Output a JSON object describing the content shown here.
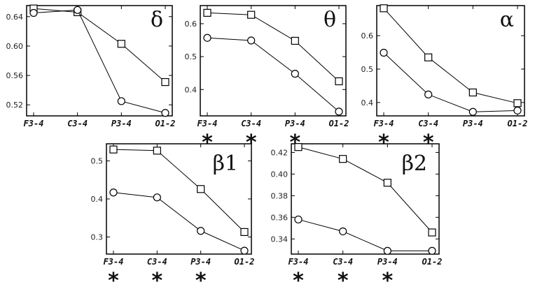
{
  "chart_data": [
    {
      "type": "line",
      "title": "δ",
      "categories": [
        "F3-4",
        "C3-4",
        "P3-4",
        "O1-2"
      ],
      "ylim": [
        0.505,
        0.655
      ],
      "yticks": [
        "0.52",
        "0.56",
        "0.60",
        "0.64"
      ],
      "ytick_values": [
        0.52,
        0.56,
        0.6,
        0.64
      ],
      "significant": [
        false,
        false,
        false,
        false
      ],
      "series": [
        {
          "marker": "square",
          "values": [
            0.651,
            0.646,
            0.603,
            0.551
          ]
        },
        {
          "marker": "circle",
          "values": [
            0.645,
            0.649,
            0.525,
            0.509
          ]
        }
      ]
    },
    {
      "type": "line",
      "title": "θ",
      "categories": [
        "F3-4",
        "C3-4",
        "P3-4",
        "O1-2"
      ],
      "ylim": [
        0.32,
        0.655
      ],
      "yticks": [
        "0.4",
        "0.5",
        "0.6"
      ],
      "ytick_values": [
        0.4,
        0.5,
        0.6
      ],
      "significant": [
        true,
        true,
        true,
        false
      ],
      "series": [
        {
          "marker": "square",
          "values": [
            0.633,
            0.627,
            0.548,
            0.425
          ]
        },
        {
          "marker": "circle",
          "values": [
            0.557,
            0.549,
            0.448,
            0.333
          ]
        }
      ]
    },
    {
      "type": "line",
      "title": "α",
      "categories": [
        "F3-4",
        "C3-4",
        "P3-4",
        "O1-2"
      ],
      "ylim": [
        0.36,
        0.69
      ],
      "yticks": [
        "0.4",
        "0.5",
        "0.6"
      ],
      "ytick_values": [
        0.4,
        0.5,
        0.6
      ],
      "significant": [
        true,
        true,
        false,
        false
      ],
      "series": [
        {
          "marker": "square",
          "values": [
            0.682,
            0.535,
            0.43,
            0.398
          ]
        },
        {
          "marker": "circle",
          "values": [
            0.549,
            0.424,
            0.372,
            0.376
          ]
        }
      ]
    },
    {
      "type": "line",
      "title": "β1",
      "categories": [
        "F3-4",
        "C3-4",
        "P3-4",
        "O1-2"
      ],
      "ylim": [
        0.255,
        0.545
      ],
      "yticks": [
        "0.3",
        "0.4",
        "0.5"
      ],
      "ytick_values": [
        0.3,
        0.4,
        0.5
      ],
      "significant": [
        true,
        true,
        true,
        false
      ],
      "series": [
        {
          "marker": "square",
          "values": [
            0.53,
            0.527,
            0.426,
            0.313
          ]
        },
        {
          "marker": "circle",
          "values": [
            0.417,
            0.404,
            0.316,
            0.264
          ]
        }
      ]
    },
    {
      "type": "line",
      "title": "β2",
      "categories": [
        "F3-4",
        "C3-4",
        "P3-4",
        "O1-2"
      ],
      "ylim": [
        0.326,
        0.428
      ],
      "yticks": [
        "0.34",
        "0.36",
        "0.38",
        "0.40",
        "0.42"
      ],
      "ytick_values": [
        0.34,
        0.36,
        0.38,
        0.4,
        0.42
      ],
      "significant": [
        true,
        true,
        true,
        false
      ],
      "series": [
        {
          "marker": "square",
          "values": [
            0.425,
            0.414,
            0.392,
            0.346
          ]
        },
        {
          "marker": "circle",
          "values": [
            0.358,
            0.347,
            0.329,
            0.329
          ]
        }
      ]
    }
  ],
  "significance_marker": "*"
}
